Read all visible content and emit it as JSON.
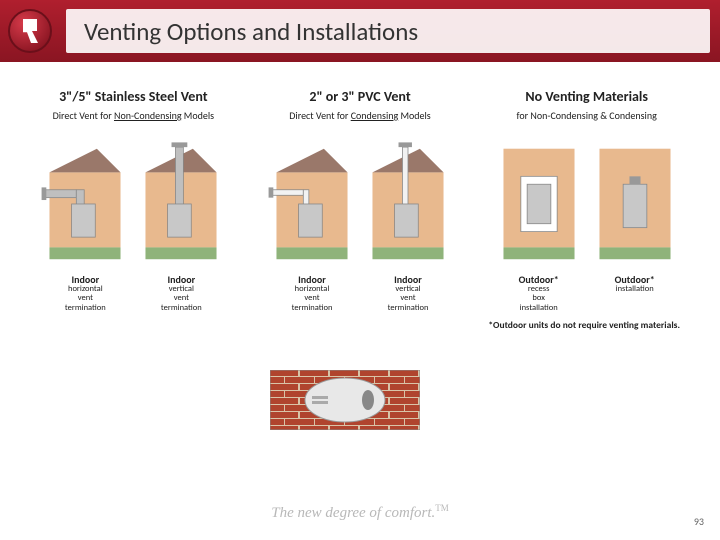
{
  "header": {
    "title": "Venting Options and Installations"
  },
  "columns": [
    {
      "title": "3\"/5\" Stainless Steel Vent",
      "subtitle_pre": "Direct Vent for ",
      "subtitle_u": "Non-Condensing",
      "subtitle_post": " Models",
      "diagrams": [
        {
          "loc": "Indoor",
          "desc": "horizontal vent termination"
        },
        {
          "loc": "Indoor",
          "desc": "vertical vent termination"
        }
      ]
    },
    {
      "title": "2\" or 3\" PVC Vent",
      "subtitle_pre": "Direct Vent for ",
      "subtitle_u": "Condensing",
      "subtitle_post": " Models",
      "diagrams": [
        {
          "loc": "Indoor",
          "desc": "horizontal vent termination"
        },
        {
          "loc": "Indoor",
          "desc": "vertical vent termination"
        }
      ]
    },
    {
      "title": "No Venting Materials",
      "subtitle_pre": "for Non-Condensing & Condensing",
      "subtitle_u": "",
      "subtitle_post": "",
      "diagrams": [
        {
          "loc": "Outdoor*",
          "desc": "recess box installation"
        },
        {
          "loc": "Outdoor*",
          "desc": "installation"
        }
      ]
    }
  ],
  "note": "*Outdoor units do not require venting materials.",
  "tagline": "The new degree of comfort.",
  "page_number": "93",
  "colors": {
    "wall": "#e8b98e",
    "roof": "#9a786a",
    "ground": "#8fb37a",
    "unit": "#c8c8c8",
    "pipe_gray": "#bfbfbf",
    "pipe_white": "#f2f2f2",
    "brick": "#b0442e",
    "mortar": "#d9c4a8"
  }
}
